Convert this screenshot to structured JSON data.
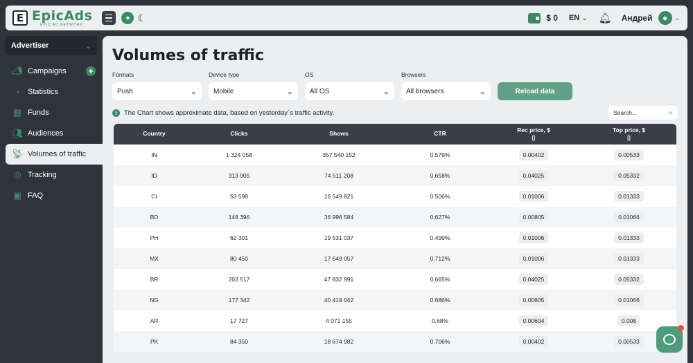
{
  "header": {
    "logo_letter": "E",
    "brand": "EpicAds",
    "tagline": "EPIC AD NETWORK",
    "balance": "$ 0",
    "language": "EN",
    "username": "Андрей"
  },
  "sidebar": {
    "role": "Advertiser",
    "items": [
      {
        "label": "Campaigns",
        "icon": "megaphone-icon"
      },
      {
        "label": "Statistics",
        "icon": "chart-icon"
      },
      {
        "label": "Funds",
        "icon": "money-icon"
      },
      {
        "label": "Audiences",
        "icon": "users-icon"
      },
      {
        "label": "Volumes of traffic",
        "icon": "satellite-icon"
      },
      {
        "label": "Tracking",
        "icon": "target-icon"
      },
      {
        "label": "FAQ",
        "icon": "faq-icon"
      }
    ]
  },
  "main": {
    "title": "Volumes of traffic",
    "filters": [
      {
        "label": "Formats",
        "value": "Push"
      },
      {
        "label": "Device type",
        "value": "Mobile"
      },
      {
        "label": "OS",
        "value": "All OS"
      },
      {
        "label": "Browsers",
        "value": "All browsers"
      }
    ],
    "reload_label": "Reload data",
    "info_text": "The Chart shows approximate data, based on yesterday`s traffic activity.",
    "search_placeholder": "Search...",
    "table": {
      "headers": [
        "Country",
        "Clicks",
        "Shows",
        "CTR",
        "Rec price, $",
        "Top price, $"
      ],
      "rows": [
        [
          "IN",
          "1 324 058",
          "357 540 152",
          "0.579%",
          "0.00402",
          "0.00533"
        ],
        [
          "ID",
          "313 905",
          "74 511 208",
          "0.658%",
          "0.04025",
          "0.05332"
        ],
        [
          "CI",
          "53 598",
          "16 549 821",
          "0.506%",
          "0.01006",
          "0.01333"
        ],
        [
          "BD",
          "148 396",
          "36 996 584",
          "0.627%",
          "0.00805",
          "0.01066"
        ],
        [
          "PH",
          "62 391",
          "19 531 037",
          "0.499%",
          "0.01006",
          "0.01333"
        ],
        [
          "MX",
          "80 450",
          "17 649 057",
          "0.712%",
          "0.01006",
          "0.01333"
        ],
        [
          "BR",
          "203 517",
          "47 832 991",
          "0.665%",
          "0.04025",
          "0.05332"
        ],
        [
          "NG",
          "177 342",
          "40 419 042",
          "0.686%",
          "0.00805",
          "0.01066"
        ],
        [
          "AR",
          "17 727",
          "4 071 155",
          "0.68%",
          "0.00604",
          "0.008"
        ],
        [
          "PK",
          "84 350",
          "18 674 982",
          "0.706%",
          "0.00402",
          "0.00533"
        ]
      ]
    }
  },
  "colors": {
    "accent": "#3d8a67",
    "sidebar_bg": "#2f333b",
    "panel_bg": "#eceef0",
    "table_header": "#3a3f47"
  }
}
